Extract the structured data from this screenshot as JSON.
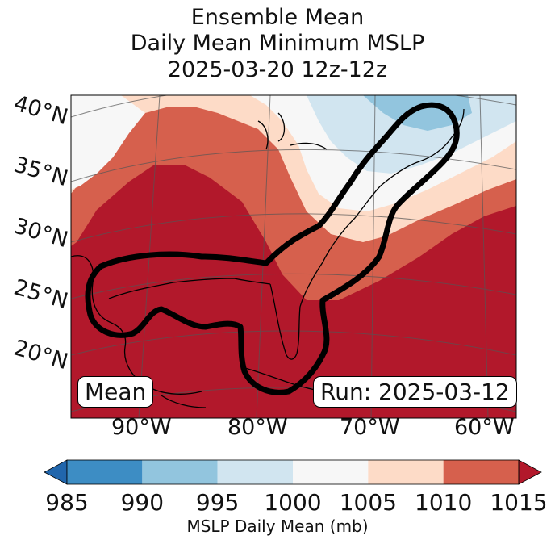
{
  "title": {
    "line1": "Ensemble Mean",
    "line2": "Daily Mean Minimum MSLP",
    "line3": "2025-03-20 12z-12z"
  },
  "map": {
    "lat_labels": [
      "40°N",
      "35°N",
      "30°N",
      "25°N",
      "20°N"
    ],
    "lon_labels": [
      "90°W",
      "80°W",
      "70°W",
      "60°W"
    ],
    "mean_box": "Mean",
    "run_box": "Run: 2025-03-12"
  },
  "colorbar": {
    "ticks": [
      "985",
      "990",
      "995",
      "1000",
      "1005",
      "1010",
      "1015"
    ],
    "label": "MSLP Daily Mean (mb)",
    "colors": [
      "#2166ac",
      "#3d8dc4",
      "#92c5de",
      "#d1e5f0",
      "#f7f7f7",
      "#fddbc7",
      "#d6604d",
      "#b2182b"
    ]
  }
}
